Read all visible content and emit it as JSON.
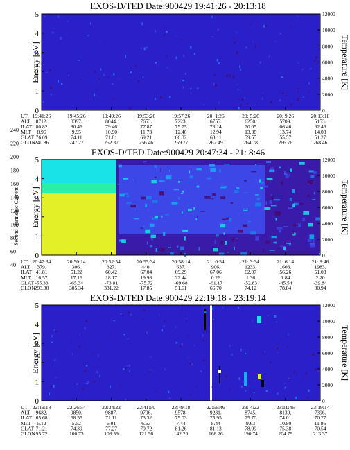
{
  "colors": {
    "background": "#2a1fc8",
    "scale": [
      "#000000",
      "#4a0a6a",
      "#3a1aa8",
      "#2a1fc8",
      "#3d46e6",
      "#1e7cf0",
      "#12b0f2",
      "#19e3e6",
      "#29f0a6",
      "#8cf05a",
      "#e3f028",
      "#f0b026",
      "#f05a1e",
      "#e01818"
    ]
  },
  "colorbar": {
    "label": "Second Harmonic Current",
    "ticks": [
      "40",
      "60",
      "80",
      "100",
      "120",
      "140",
      "160",
      "180",
      "200",
      "220",
      "240"
    ]
  },
  "chart_data": [
    {
      "type": "heatmap",
      "title": "EXOS-D/TED    Date:900429   19:41:26 - 20:13:18",
      "ylabel": "Energy [eV]",
      "ylabel_right": "Temperature [K]",
      "yticks": [
        "0",
        "1",
        "2",
        "3",
        "4",
        "5"
      ],
      "yticks_right": [
        "0",
        "2000",
        "4000",
        "6000",
        "8000",
        "10000",
        "12000"
      ],
      "ylim": [
        0,
        5
      ],
      "ylim_right": [
        0,
        12000
      ],
      "rows": [
        {
          "label": "UT",
          "values": [
            "19:41:26",
            "19:45:26",
            "19:49:26",
            "19:53:26",
            "19:57:26",
            "20: 1:26",
            "20: 5:26",
            "20: 9:26",
            "20:13:18"
          ]
        },
        {
          "label": "ALT",
          "values": [
            "8712.",
            "8397.",
            "8044.",
            "7653.",
            "7223.",
            "6755.",
            "6250.",
            "5709.",
            "5153."
          ]
        },
        {
          "label": "ILAT",
          "values": [
            "80.82",
            "80.46",
            "79.46",
            "77.87",
            "75.75",
            "73.14",
            "70.05",
            "66.46",
            "62.46"
          ]
        },
        {
          "label": "MLT",
          "values": [
            "8.96",
            "9.95",
            "10.90",
            "11.73",
            "12.40",
            "12.94",
            "13.38",
            "13.74",
            "14.03"
          ]
        },
        {
          "label": "GLAT",
          "values": [
            "76.09",
            "74.11",
            "71.81",
            "69.21",
            "66.32",
            "63.11",
            "59.55",
            "55.57",
            "51.27"
          ]
        },
        {
          "label": "GLON",
          "values": [
            "240.86",
            "247.27",
            "252.37",
            "256.46",
            "259.77",
            "262.49",
            "264.78",
            "266.76",
            "268.46"
          ]
        }
      ]
    },
    {
      "type": "heatmap",
      "title": "EXOS-D/TED    Date:900429   20:47:34 - 21: 8:46",
      "ylabel": "Energy [eV]",
      "ylabel_right": "Temperature [K]",
      "yticks": [
        "0",
        "1",
        "2",
        "3",
        "4",
        "5"
      ],
      "yticks_right": [
        "0",
        "2000",
        "4000",
        "6000",
        "8000",
        "10000",
        "12000"
      ],
      "ylim": [
        0,
        5
      ],
      "ylim_right": [
        0,
        12000
      ],
      "rows": [
        {
          "label": "UT",
          "values": [
            "20:47:34",
            "20:50:14",
            "20:52:54",
            "20:55:34",
            "20:58:14",
            "21: 0:54",
            "21: 3:34",
            "21: 6:14",
            "21: 8:46"
          ]
        },
        {
          "label": "ALT",
          "values": [
            "379.",
            "306.",
            "327.",
            "440.",
            "637.",
            "906.",
            "1233.",
            "1603.",
            "1983."
          ]
        },
        {
          "label": "ILAT",
          "values": [
            "41.81",
            "51.22",
            "60.42",
            "67.04",
            "69.29",
            "67.06",
            "62.07",
            "56.26",
            "51.03"
          ]
        },
        {
          "label": "MLT",
          "values": [
            "16.57",
            "17.16",
            "18.17",
            "19.98",
            "22.44",
            "0.26",
            "1.36",
            "1.84",
            "2.20"
          ]
        },
        {
          "label": "GLAT",
          "values": [
            "-55.33",
            "-65.34",
            "-73.81",
            "-75.72",
            "-69.68",
            "-61.17",
            "-52.83",
            "-45.54",
            "-39.84"
          ]
        },
        {
          "label": "GLON",
          "values": [
            "293.30",
            "305.34",
            "331.22",
            "17.85",
            "51.61",
            "66.70",
            "74.12",
            "78.84",
            "80.94"
          ]
        }
      ]
    },
    {
      "type": "heatmap",
      "title": "EXOS-D/TED    Date:900429   22:19:18 - 23:19:14",
      "ylabel": "Energy [eV]",
      "ylabel_right": "Temperature [K]",
      "yticks": [
        "0",
        "1",
        "2",
        "3",
        "4",
        "5"
      ],
      "yticks_right": [
        "0",
        "2000",
        "4000",
        "6000",
        "8000",
        "10000",
        "12000"
      ],
      "ylim": [
        0,
        5
      ],
      "ylim_right": [
        0,
        12000
      ],
      "rows": [
        {
          "label": "UT",
          "values": [
            "22:19:18",
            "22:26:54",
            "22:34:22",
            "22:41:50",
            "22:49:18",
            "22:56:46",
            "23: 4:22",
            "23:11:46",
            "23:19:14"
          ]
        },
        {
          "label": "ALT",
          "values": [
            "9682.",
            "9850.",
            "9887.",
            "9796.",
            "9578.",
            "9231.",
            "8745.",
            "8139.",
            "7396."
          ]
        },
        {
          "label": "ILAT",
          "values": [
            "65.68",
            "68.55",
            "71.11",
            "73.32",
            "75.03",
            "75.95",
            "75.70",
            "74.01",
            "70.77"
          ]
        },
        {
          "label": "MLT",
          "values": [
            "5.12",
            "5.52",
            "6.01",
            "6.63",
            "7.44",
            "8.44",
            "9.63",
            "10.80",
            "11.86"
          ]
        },
        {
          "label": "GLAT",
          "values": [
            "71.21",
            "74.39",
            "77.27",
            "79.72",
            "81.26",
            "81.13",
            "78.99",
            "75.38",
            "70.54"
          ]
        },
        {
          "label": "GLON",
          "values": [
            "95.72",
            "100.73",
            "108.59",
            "121.56",
            "142.20",
            "168.26",
            "190.74",
            "204.79",
            "213.37"
          ]
        }
      ]
    }
  ]
}
